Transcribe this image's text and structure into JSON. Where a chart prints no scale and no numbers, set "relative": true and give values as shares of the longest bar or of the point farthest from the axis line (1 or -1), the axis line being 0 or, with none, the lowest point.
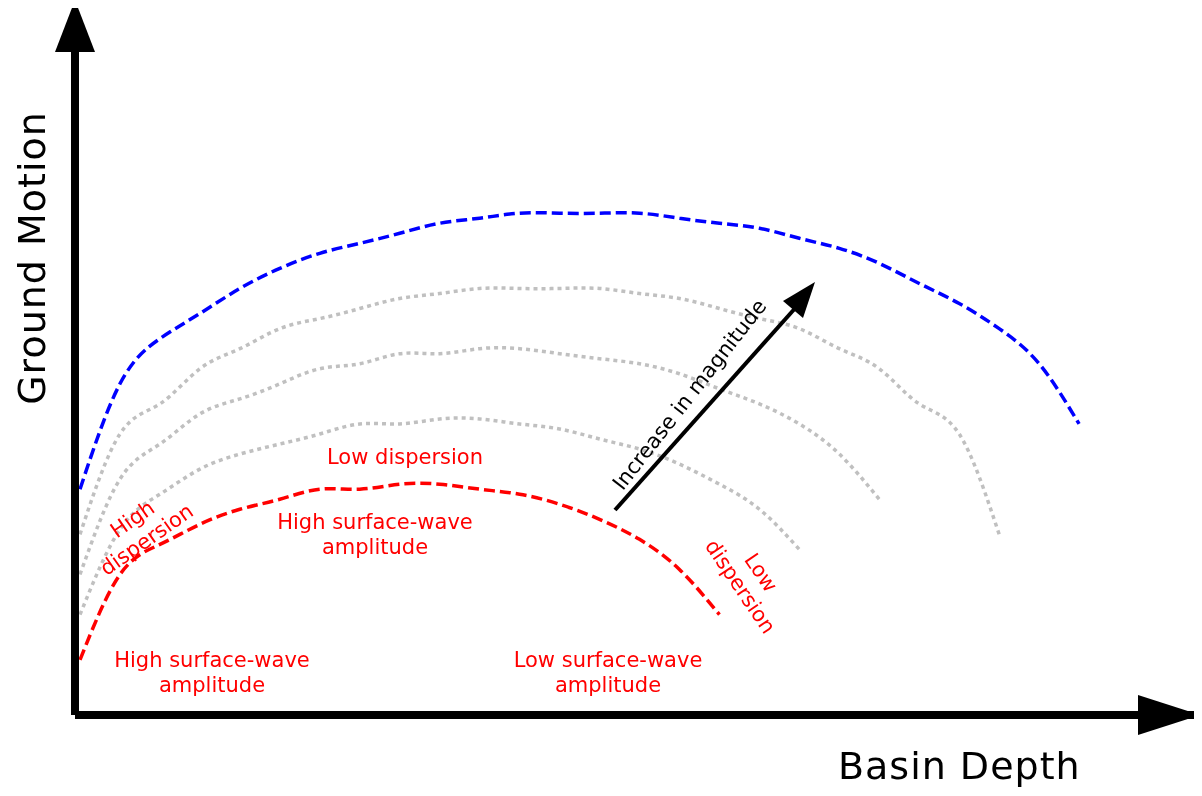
{
  "chart_data": {
    "type": "line",
    "relative": true,
    "xlabel": "Basin Depth",
    "ylabel": "Ground Motion",
    "marker": "none",
    "grid": false,
    "legend": false,
    "categories": [
      null,
      null,
      null,
      null,
      null,
      null,
      null,
      null,
      null,
      null,
      null,
      null,
      null,
      null,
      null,
      null,
      null,
      null,
      null,
      null,
      null,
      null,
      null,
      null,
      null,
      null,
      null
    ],
    "series": [
      {
        "color": "#ff0000",
        "line_style": "dashed",
        "values": [
          0.11,
          0.28,
          0.34,
          0.38,
          0.41,
          0.43,
          0.45,
          0.45,
          0.46,
          0.46,
          0.45,
          0.44,
          0.42,
          0.39,
          0.35,
          0.29,
          0.2,
          null,
          null,
          null,
          null,
          null,
          null,
          null,
          null,
          null,
          null
        ]
      },
      {
        "color": "#c0c0c0",
        "line_style": "dotted",
        "values": [
          0.2,
          0.37,
          0.44,
          0.49,
          0.52,
          0.54,
          0.56,
          0.58,
          0.58,
          0.59,
          0.59,
          0.58,
          0.57,
          0.55,
          0.53,
          0.5,
          0.46,
          0.41,
          0.33,
          null,
          null,
          null,
          null,
          null,
          null,
          null,
          null
        ]
      },
      {
        "color": "#c0c0c0",
        "line_style": "dotted",
        "values": [
          0.28,
          0.47,
          0.54,
          0.6,
          0.63,
          0.66,
          0.69,
          0.7,
          0.72,
          0.72,
          0.73,
          0.73,
          0.72,
          0.71,
          0.7,
          0.68,
          0.65,
          0.62,
          0.58,
          0.52,
          0.43,
          null,
          null,
          null,
          null,
          null,
          null
        ]
      },
      {
        "color": "#c0c0c0",
        "line_style": "dotted",
        "values": [
          0.36,
          0.56,
          0.62,
          0.69,
          0.73,
          0.77,
          0.79,
          0.81,
          0.83,
          0.84,
          0.85,
          0.85,
          0.85,
          0.85,
          0.84,
          0.83,
          0.81,
          0.79,
          0.77,
          0.73,
          0.69,
          0.62,
          0.56,
          0.36,
          null,
          null,
          null
        ]
      },
      {
        "color": "#0000ff",
        "line_style": "dashed",
        "values": [
          0.45,
          0.66,
          0.75,
          0.8,
          0.85,
          0.89,
          0.92,
          0.94,
          0.96,
          0.98,
          0.99,
          1.0,
          1.0,
          1.0,
          1.0,
          0.99,
          0.98,
          0.97,
          0.95,
          0.93,
          0.9,
          0.86,
          0.82,
          0.77,
          0.7,
          0.58,
          null
        ]
      }
    ],
    "annotations": [
      "High dispersion",
      "High surface-wave amplitude",
      "Low dispersion",
      "High surface-wave amplitude",
      "Low dispersion",
      "Low surface-wave amplitude",
      "Increase in magnitude"
    ]
  }
}
